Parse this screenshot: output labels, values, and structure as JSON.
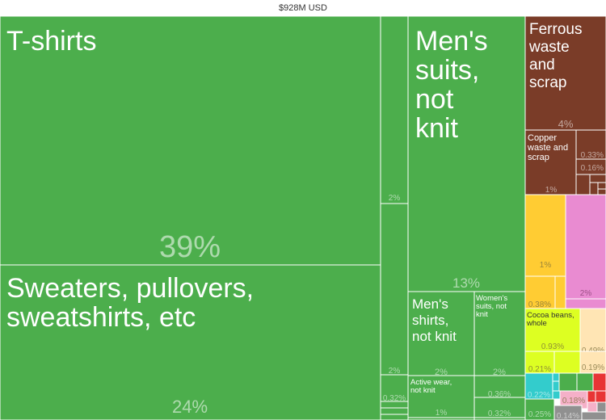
{
  "header": {
    "total": "$928M USD"
  },
  "colors": {
    "textiles": "#4cae4c",
    "metals": "#7a3c28",
    "vegetable": "#ffcc33",
    "misc": "#e98bd1",
    "foodstuffs": "#ddff22",
    "beige": "#ffe5b4",
    "minerals": "#33cccc",
    "pink_light": "#f5b0c8",
    "machines": "#909090",
    "transport": "#e83535",
    "edge": "#ffffff"
  },
  "chart_data": {
    "type": "treemap",
    "title": "$928M USD",
    "items": [
      {
        "label": "T-shirts",
        "value": 39,
        "value_label": "39%",
        "group": "textiles"
      },
      {
        "label": "Sweaters, pullovers, sweatshirts, etc",
        "value": 24,
        "value_label": "24%",
        "group": "textiles"
      },
      {
        "label": "",
        "value": 2,
        "value_label": "2%",
        "group": "textiles"
      },
      {
        "label": "",
        "value": 2,
        "value_label": "2%",
        "group": "textiles"
      },
      {
        "label": "",
        "value": 0.32,
        "value_label": "0.32%",
        "group": "textiles"
      },
      {
        "label": "Men's suits, not knit",
        "value": 13,
        "value_label": "13%",
        "group": "textiles"
      },
      {
        "label": "Men's shirts, not knit",
        "value": 2,
        "value_label": "2%",
        "group": "textiles"
      },
      {
        "label": "Women's suits, not knit",
        "value": 2,
        "value_label": "2%",
        "group": "textiles"
      },
      {
        "label": "Active wear, not knit",
        "value": 1,
        "value_label": "1%",
        "group": "textiles"
      },
      {
        "label": "",
        "value": 0.36,
        "value_label": "0.36%",
        "group": "textiles"
      },
      {
        "label": "",
        "value": 0.32,
        "value_label": "0.32%",
        "group": "textiles"
      },
      {
        "label": "Ferrous waste and scrap",
        "value": 4,
        "value_label": "4%",
        "group": "metals"
      },
      {
        "label": "Copper waste and scrap",
        "value": 1,
        "value_label": "1%",
        "group": "metals"
      },
      {
        "label": "",
        "value": 0.33,
        "value_label": "0.33%",
        "group": "metals"
      },
      {
        "label": "",
        "value": 0.16,
        "value_label": "0.16%",
        "group": "metals"
      },
      {
        "label": "",
        "value": 1,
        "value_label": "1%",
        "group": "vegetable"
      },
      {
        "label": "",
        "value": 0.38,
        "value_label": "0.38%",
        "group": "vegetable"
      },
      {
        "label": "",
        "value": 2,
        "value_label": "2%",
        "group": "misc"
      },
      {
        "label": "Cocoa beans, whole",
        "value": 0.93,
        "value_label": "0.93%",
        "group": "foodstuffs"
      },
      {
        "label": "",
        "value": 0.21,
        "value_label": "0.21%",
        "group": "foodstuffs"
      },
      {
        "label": "",
        "value": 0.49,
        "value_label": "0.49%",
        "group": "beige"
      },
      {
        "label": "",
        "value": 0.19,
        "value_label": "0.19%",
        "group": "beige"
      },
      {
        "label": "",
        "value": 0.22,
        "value_label": "0.22%",
        "group": "minerals"
      },
      {
        "label": "",
        "value": 0.18,
        "value_label": "0.18%",
        "group": "pink_light"
      },
      {
        "label": "",
        "value": 0.25,
        "value_label": "0.25%",
        "group": "textiles"
      },
      {
        "label": "",
        "value": 0.14,
        "value_label": "0.14%",
        "group": "machines"
      }
    ]
  }
}
